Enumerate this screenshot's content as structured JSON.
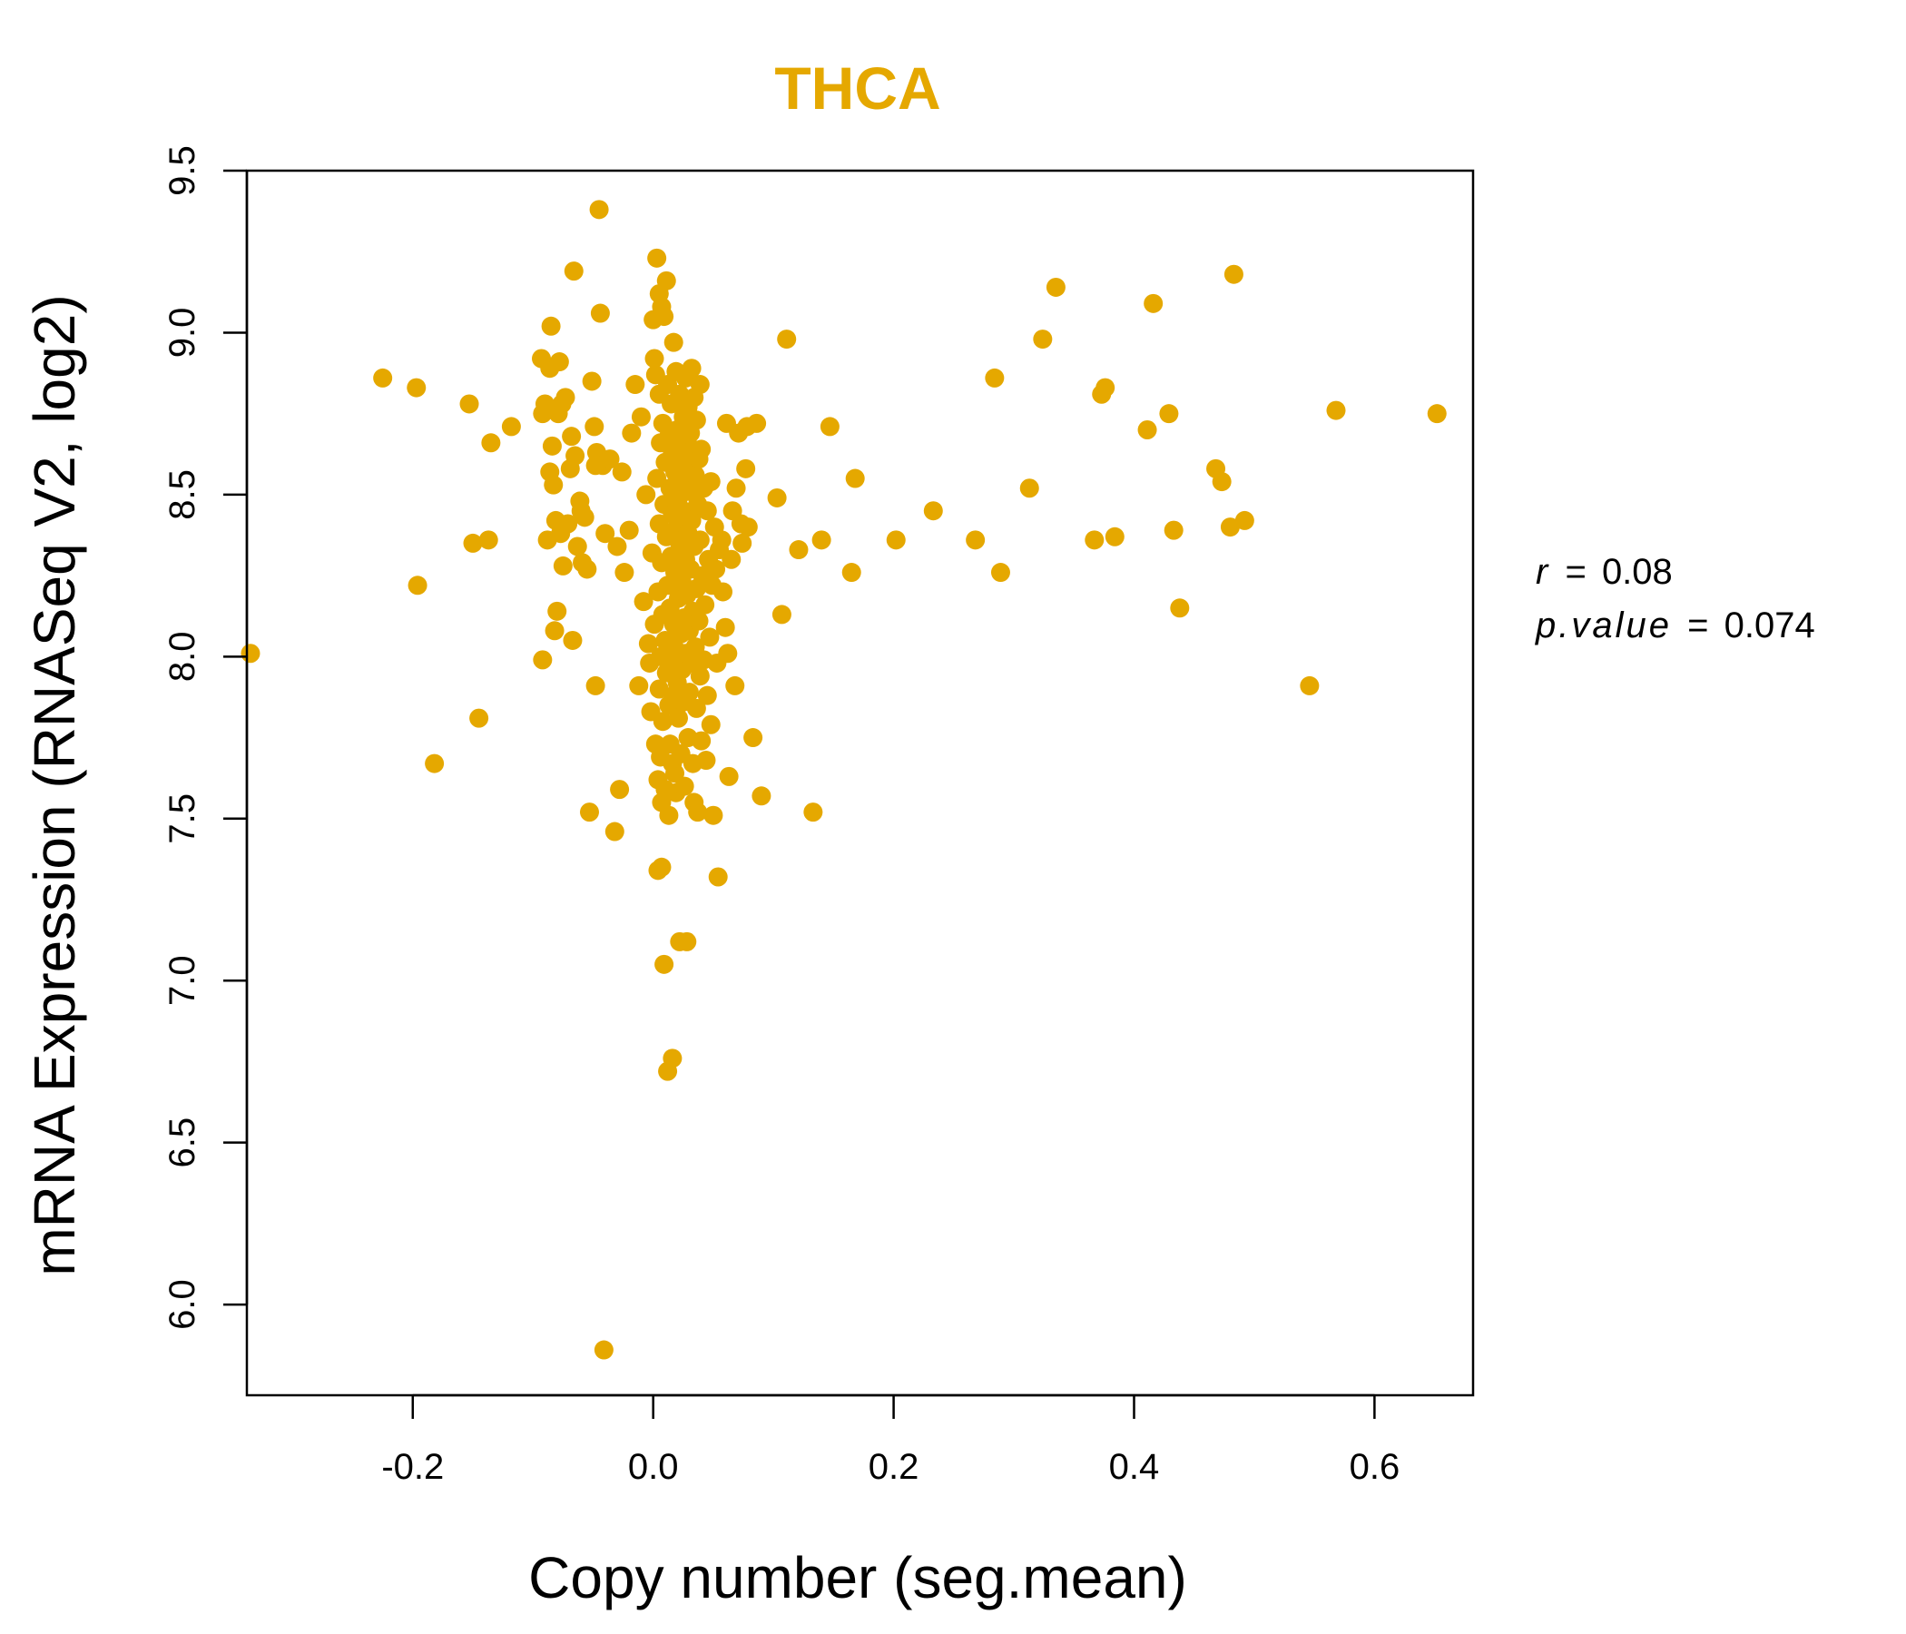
{
  "chart_data": {
    "type": "scatter",
    "title": "THCA",
    "xlabel": "Copy number (seg.mean)",
    "ylabel": "mRNA Expression (RNASeq V2, log2)",
    "xlim": [
      -0.338,
      0.682
    ],
    "ylim": [
      5.72,
      9.5
    ],
    "x_ticks": [
      "-0.2",
      "0.0",
      "0.2",
      "0.4",
      "0.6"
    ],
    "x_tick_values": [
      -0.2,
      0.0,
      0.2,
      0.4,
      0.6
    ],
    "y_ticks": [
      "6.0",
      "6.5",
      "7.0",
      "7.5",
      "8.0",
      "8.5",
      "9.0",
      "9.5"
    ],
    "y_tick_values": [
      6.0,
      6.5,
      7.0,
      7.5,
      8.0,
      8.5,
      9.0,
      9.5
    ],
    "color": "#E5A800",
    "grid": false,
    "stats": {
      "r_label": "r",
      "r_value": "0.08",
      "p_label": "p.value",
      "p_value": "0.074"
    },
    "points": [
      [
        -0.335,
        8.01
      ],
      [
        -0.225,
        8.86
      ],
      [
        -0.197,
        8.83
      ],
      [
        -0.196,
        8.22
      ],
      [
        -0.182,
        7.67
      ],
      [
        -0.153,
        8.78
      ],
      [
        -0.15,
        8.35
      ],
      [
        -0.145,
        7.81
      ],
      [
        -0.137,
        8.36
      ],
      [
        -0.135,
        8.66
      ],
      [
        -0.118,
        8.71
      ],
      [
        -0.093,
        8.92
      ],
      [
        -0.092,
        8.75
      ],
      [
        -0.092,
        7.99
      ],
      [
        -0.09,
        8.78
      ],
      [
        -0.088,
        8.36
      ],
      [
        -0.086,
        8.89
      ],
      [
        -0.086,
        8.57
      ],
      [
        -0.085,
        9.02
      ],
      [
        -0.084,
        8.65
      ],
      [
        -0.083,
        8.53
      ],
      [
        -0.082,
        8.08
      ],
      [
        -0.081,
        8.42
      ],
      [
        -0.08,
        8.14
      ],
      [
        -0.079,
        8.75
      ],
      [
        -0.078,
        8.91
      ],
      [
        -0.077,
        8.38
      ],
      [
        -0.076,
        8.78
      ],
      [
        -0.075,
        8.28
      ],
      [
        -0.073,
        8.8
      ],
      [
        -0.071,
        8.41
      ],
      [
        -0.069,
        8.58
      ],
      [
        -0.068,
        8.68
      ],
      [
        -0.067,
        8.05
      ],
      [
        -0.066,
        9.19
      ],
      [
        -0.065,
        8.62
      ],
      [
        -0.063,
        8.34
      ],
      [
        -0.061,
        8.48
      ],
      [
        -0.06,
        8.45
      ],
      [
        -0.059,
        8.29
      ],
      [
        -0.057,
        8.43
      ],
      [
        -0.055,
        8.27
      ],
      [
        -0.053,
        7.52
      ],
      [
        -0.051,
        8.85
      ],
      [
        -0.049,
        8.71
      ],
      [
        -0.048,
        8.59
      ],
      [
        -0.048,
        7.91
      ],
      [
        -0.047,
        8.63
      ],
      [
        -0.045,
        9.38
      ],
      [
        -0.044,
        9.06
      ],
      [
        -0.042,
        8.59
      ],
      [
        -0.041,
        5.86
      ],
      [
        -0.04,
        8.38
      ],
      [
        -0.036,
        8.61
      ],
      [
        -0.032,
        7.46
      ],
      [
        -0.03,
        8.34
      ],
      [
        -0.028,
        7.59
      ],
      [
        -0.026,
        8.57
      ],
      [
        -0.024,
        8.26
      ],
      [
        -0.02,
        8.39
      ],
      [
        -0.018,
        8.69
      ],
      [
        -0.015,
        8.84
      ],
      [
        -0.012,
        7.91
      ],
      [
        -0.01,
        8.74
      ],
      [
        -0.008,
        8.17
      ],
      [
        -0.006,
        8.5
      ],
      [
        -0.004,
        8.04
      ],
      [
        -0.003,
        7.98
      ],
      [
        -0.002,
        7.83
      ],
      [
        -0.001,
        8.32
      ],
      [
        0.0,
        9.04
      ],
      [
        0.001,
        8.92
      ],
      [
        0.001,
        8.1
      ],
      [
        0.002,
        8.87
      ],
      [
        0.002,
        7.73
      ],
      [
        0.003,
        9.23
      ],
      [
        0.003,
        8.55
      ],
      [
        0.004,
        8.2
      ],
      [
        0.004,
        7.62
      ],
      [
        0.004,
        7.34
      ],
      [
        0.005,
        9.12
      ],
      [
        0.005,
        8.81
      ],
      [
        0.005,
        8.41
      ],
      [
        0.005,
        7.9
      ],
      [
        0.006,
        8.66
      ],
      [
        0.006,
        8.0
      ],
      [
        0.006,
        7.69
      ],
      [
        0.007,
        9.08
      ],
      [
        0.007,
        8.29
      ],
      [
        0.007,
        7.55
      ],
      [
        0.007,
        7.35
      ],
      [
        0.008,
        8.72
      ],
      [
        0.008,
        8.13
      ],
      [
        0.008,
        7.8
      ],
      [
        0.009,
        9.05
      ],
      [
        0.009,
        8.47
      ],
      [
        0.009,
        7.05
      ],
      [
        0.01,
        8.6
      ],
      [
        0.01,
        8.05
      ],
      [
        0.01,
        7.59
      ],
      [
        0.011,
        9.16
      ],
      [
        0.011,
        8.37
      ],
      [
        0.011,
        7.95
      ],
      [
        0.012,
        8.84
      ],
      [
        0.012,
        8.22
      ],
      [
        0.012,
        6.72
      ],
      [
        0.013,
        8.68
      ],
      [
        0.013,
        7.85
      ],
      [
        0.013,
        7.51
      ],
      [
        0.014,
        8.52
      ],
      [
        0.014,
        8.15
      ],
      [
        0.014,
        7.73
      ],
      [
        0.015,
        8.78
      ],
      [
        0.015,
        8.31
      ],
      [
        0.015,
        7.99
      ],
      [
        0.016,
        8.63
      ],
      [
        0.016,
        8.44
      ],
      [
        0.016,
        7.67
      ],
      [
        0.016,
        6.76
      ],
      [
        0.017,
        8.97
      ],
      [
        0.017,
        8.1
      ],
      [
        0.017,
        7.88
      ],
      [
        0.018,
        8.57
      ],
      [
        0.018,
        8.26
      ],
      [
        0.018,
        7.64
      ],
      [
        0.019,
        8.88
      ],
      [
        0.019,
        8.02
      ],
      [
        0.019,
        7.58
      ],
      [
        0.02,
        8.7
      ],
      [
        0.02,
        8.4
      ],
      [
        0.02,
        7.92
      ],
      [
        0.021,
        8.49
      ],
      [
        0.021,
        8.18
      ],
      [
        0.021,
        7.81
      ],
      [
        0.022,
        8.81
      ],
      [
        0.022,
        8.35
      ],
      [
        0.022,
        7.12
      ],
      [
        0.023,
        8.62
      ],
      [
        0.023,
        8.07
      ],
      [
        0.023,
        7.7
      ],
      [
        0.024,
        8.54
      ],
      [
        0.024,
        8.23
      ],
      [
        0.024,
        7.96
      ],
      [
        0.025,
        8.74
      ],
      [
        0.025,
        8.45
      ],
      [
        0.025,
        7.86
      ],
      [
        0.026,
        8.66
      ],
      [
        0.026,
        8.12
      ],
      [
        0.026,
        7.6
      ],
      [
        0.027,
        8.86
      ],
      [
        0.027,
        8.3
      ],
      [
        0.027,
        8.01
      ],
      [
        0.028,
        8.59
      ],
      [
        0.028,
        8.19
      ],
      [
        0.028,
        7.12
      ],
      [
        0.029,
        8.77
      ],
      [
        0.029,
        8.38
      ],
      [
        0.029,
        7.75
      ],
      [
        0.03,
        8.51
      ],
      [
        0.03,
        8.08
      ],
      [
        0.03,
        7.89
      ],
      [
        0.031,
        8.69
      ],
      [
        0.031,
        8.27
      ],
      [
        0.032,
        8.89
      ],
      [
        0.032,
        8.42
      ],
      [
        0.032,
        7.98
      ],
      [
        0.033,
        8.64
      ],
      [
        0.033,
        8.14
      ],
      [
        0.033,
        7.67
      ],
      [
        0.034,
        8.8
      ],
      [
        0.034,
        8.34
      ],
      [
        0.034,
        7.55
      ],
      [
        0.035,
        8.56
      ],
      [
        0.035,
        8.03
      ],
      [
        0.036,
        8.73
      ],
      [
        0.036,
        8.21
      ],
      [
        0.036,
        7.84
      ],
      [
        0.037,
        8.47
      ],
      [
        0.037,
        7.52
      ],
      [
        0.038,
        8.61
      ],
      [
        0.038,
        8.11
      ],
      [
        0.039,
        8.84
      ],
      [
        0.039,
        8.36
      ],
      [
        0.039,
        7.94
      ],
      [
        0.04,
        8.64
      ],
      [
        0.04,
        7.74
      ],
      [
        0.041,
        8.25
      ],
      [
        0.042,
        8.52
      ],
      [
        0.042,
        7.99
      ],
      [
        0.043,
        8.16
      ],
      [
        0.044,
        7.68
      ],
      [
        0.045,
        8.45
      ],
      [
        0.045,
        7.88
      ],
      [
        0.046,
        8.3
      ],
      [
        0.047,
        8.06
      ],
      [
        0.048,
        8.54
      ],
      [
        0.048,
        7.79
      ],
      [
        0.049,
        8.22
      ],
      [
        0.05,
        7.51
      ],
      [
        0.051,
        8.4
      ],
      [
        0.052,
        8.27
      ],
      [
        0.053,
        7.98
      ],
      [
        0.054,
        7.32
      ],
      [
        0.055,
        8.33
      ],
      [
        0.057,
        8.36
      ],
      [
        0.058,
        8.2
      ],
      [
        0.06,
        8.09
      ],
      [
        0.061,
        8.72
      ],
      [
        0.062,
        8.01
      ],
      [
        0.063,
        7.63
      ],
      [
        0.065,
        8.3
      ],
      [
        0.066,
        8.45
      ],
      [
        0.068,
        7.91
      ],
      [
        0.069,
        8.52
      ],
      [
        0.071,
        8.69
      ],
      [
        0.073,
        8.41
      ],
      [
        0.074,
        8.35
      ],
      [
        0.077,
        8.58
      ],
      [
        0.078,
        8.71
      ],
      [
        0.079,
        8.4
      ],
      [
        0.083,
        7.75
      ],
      [
        0.086,
        8.72
      ],
      [
        0.09,
        7.57
      ],
      [
        0.103,
        8.49
      ],
      [
        0.107,
        8.13
      ],
      [
        0.111,
        8.98
      ],
      [
        0.121,
        8.33
      ],
      [
        0.133,
        7.52
      ],
      [
        0.14,
        8.36
      ],
      [
        0.147,
        8.71
      ],
      [
        0.165,
        8.26
      ],
      [
        0.168,
        8.55
      ],
      [
        0.202,
        8.36
      ],
      [
        0.233,
        8.45
      ],
      [
        0.268,
        8.36
      ],
      [
        0.284,
        8.86
      ],
      [
        0.289,
        8.26
      ],
      [
        0.313,
        8.52
      ],
      [
        0.324,
        8.98
      ],
      [
        0.335,
        9.14
      ],
      [
        0.367,
        8.36
      ],
      [
        0.373,
        8.81
      ],
      [
        0.376,
        8.83
      ],
      [
        0.384,
        8.37
      ],
      [
        0.411,
        8.7
      ],
      [
        0.416,
        9.09
      ],
      [
        0.429,
        8.75
      ],
      [
        0.433,
        8.39
      ],
      [
        0.438,
        8.15
      ],
      [
        0.468,
        8.58
      ],
      [
        0.473,
        8.54
      ],
      [
        0.48,
        8.4
      ],
      [
        0.483,
        9.18
      ],
      [
        0.492,
        8.42
      ],
      [
        0.546,
        7.91
      ],
      [
        0.568,
        8.76
      ],
      [
        0.652,
        8.75
      ]
    ]
  }
}
